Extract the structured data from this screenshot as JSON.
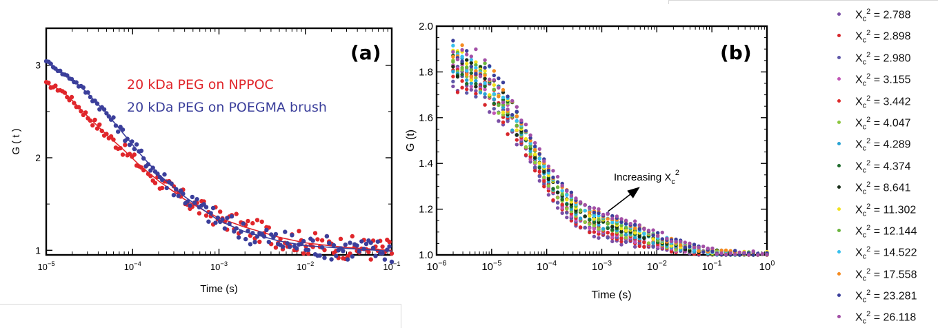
{
  "colors": {
    "red": "#e0262b",
    "blue": "#3b3f9b",
    "axis": "#000000"
  },
  "chart_data": [
    {
      "type": "scatter",
      "panel_label": "(a)",
      "xlabel": "Time  (s)",
      "ylabel": "G ( t )",
      "x_scale": "log",
      "xlim": [
        1e-05,
        0.1
      ],
      "ylim": [
        0.95,
        3.4
      ],
      "x_ticks": [
        {
          "value": 1e-05,
          "base": "10",
          "exp": "−5"
        },
        {
          "value": 0.0001,
          "base": "10",
          "exp": "−4"
        },
        {
          "value": 0.001,
          "base": "10",
          "exp": "−3"
        },
        {
          "value": 0.01,
          "base": "10",
          "exp": "−2"
        },
        {
          "value": 0.1,
          "base": "10",
          "exp": "−1"
        }
      ],
      "y_ticks": [
        {
          "value": 1,
          "label": "1"
        },
        {
          "value": 2,
          "label": "2"
        },
        {
          "value": 3,
          "label": "3"
        }
      ],
      "grid": false,
      "legend_position": "top-center",
      "series": [
        {
          "name": "20 kDa PEG on NPPOC",
          "color": "#e0262b",
          "x": [
            1e-05,
            1.5e-05,
            2e-05,
            3e-05,
            5e-05,
            8e-05,
            0.00012,
            0.0002,
            0.0004,
            0.0007,
            0.001,
            0.002,
            0.005,
            0.01,
            0.03,
            0.1
          ],
          "y": [
            2.8,
            2.73,
            2.62,
            2.45,
            2.25,
            2.08,
            1.92,
            1.75,
            1.55,
            1.42,
            1.35,
            1.25,
            1.14,
            1.08,
            1.03,
            1.0
          ]
        },
        {
          "name": "20 kDa PEG on POEGMA brush",
          "color": "#3b3f9b",
          "x": [
            1e-05,
            1.5e-05,
            2e-05,
            3e-05,
            5e-05,
            8e-05,
            0.00012,
            0.0002,
            0.0004,
            0.0007,
            0.001,
            0.002,
            0.005,
            0.01,
            0.03,
            0.1
          ],
          "y": [
            3.05,
            2.92,
            2.85,
            2.7,
            2.48,
            2.25,
            2.05,
            1.82,
            1.58,
            1.42,
            1.32,
            1.2,
            1.1,
            1.05,
            1.02,
            0.99
          ]
        }
      ]
    },
    {
      "type": "scatter",
      "panel_label": "(b)",
      "xlabel": "Time  (s)",
      "ylabel": "G (t)",
      "x_scale": "log",
      "xlim": [
        1e-06,
        1.0
      ],
      "ylim": [
        1.0,
        2.0
      ],
      "x_ticks": [
        {
          "value": 1e-06,
          "base": "10",
          "exp": "−6"
        },
        {
          "value": 1e-05,
          "base": "10",
          "exp": "−5"
        },
        {
          "value": 0.0001,
          "base": "10",
          "exp": "−4"
        },
        {
          "value": 0.001,
          "base": "10",
          "exp": "−3"
        },
        {
          "value": 0.01,
          "base": "10",
          "exp": "−2"
        },
        {
          "value": 0.1,
          "base": "10",
          "exp": "−1"
        },
        {
          "value": 1.0,
          "base": "10",
          "exp": "0"
        }
      ],
      "y_ticks": [
        {
          "value": 1.0,
          "label": "1.0"
        },
        {
          "value": 1.2,
          "label": "1.2"
        },
        {
          "value": 1.4,
          "label": "1.4"
        },
        {
          "value": 1.6,
          "label": "1.6"
        },
        {
          "value": 1.8,
          "label": "1.8"
        },
        {
          "value": 2.0,
          "label": "2.0"
        }
      ],
      "grid": false,
      "annotation": {
        "text": "Increasing X",
        "sub": "c",
        "sup": "2",
        "arrow_from": [
          0.0013,
          1.19
        ],
        "arrow_to": [
          0.0045,
          1.29
        ]
      },
      "legend_position": "right-outside",
      "series": [
        {
          "name": "2.788",
          "color": "#7b4fa6",
          "param": 2.788
        },
        {
          "name": "2.898",
          "color": "#d7262b",
          "param": 2.898
        },
        {
          "name": "2.980",
          "color": "#5e57a8",
          "param": 2.98
        },
        {
          "name": "3.155",
          "color": "#c155b5",
          "param": 3.155
        },
        {
          "name": "3.442",
          "color": "#de2a2a",
          "param": 3.442
        },
        {
          "name": "4.047",
          "color": "#8cc63f",
          "param": 4.047
        },
        {
          "name": "4.289",
          "color": "#29a3d3",
          "param": 4.289
        },
        {
          "name": "4.374",
          "color": "#1e6b2c",
          "param": 4.374
        },
        {
          "name": "8.641",
          "color": "#1a2e1a",
          "param": 8.641
        },
        {
          "name": "11.302",
          "color": "#f2e21c",
          "param": 11.302
        },
        {
          "name": "12.144",
          "color": "#6ab43e",
          "param": 12.144
        },
        {
          "name": "14.522",
          "color": "#37c0ee",
          "param": 14.522
        },
        {
          "name": "17.558",
          "color": "#f58b1f",
          "param": 17.558
        },
        {
          "name": "23.281",
          "color": "#3b3f9b",
          "param": 23.281
        },
        {
          "name": "26.118",
          "color": "#a24fa6",
          "param": 26.118
        }
      ],
      "legend_prefix": "X",
      "legend_sub": "c",
      "legend_sup": "2",
      "legend_eq": " = "
    }
  ]
}
